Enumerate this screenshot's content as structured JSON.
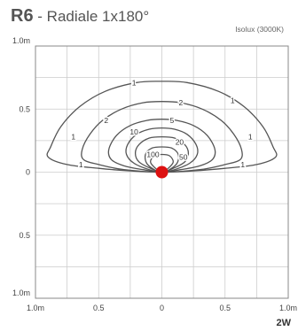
{
  "header": {
    "model": "R6",
    "title": " - Radiale 1x180°",
    "note": "Isolux (3000K)"
  },
  "footer": {
    "power": "2W"
  },
  "colors": {
    "grid": "#cccccc",
    "frame": "#888888",
    "contour": "#555555",
    "source": "#dd1111",
    "text": "#555555"
  },
  "chart_data": {
    "type": "contour",
    "x_tick_labels": [
      "1.0m",
      "0.5",
      "0",
      "0.5",
      "1.0m"
    ],
    "y_tick_labels": [
      "1.0m",
      "0.5",
      "0",
      "0.5",
      "1.0m"
    ],
    "x_ticks": [
      -1.0,
      -0.5,
      0,
      0.5,
      1.0
    ],
    "y_ticks": [
      1.0,
      0.5,
      0,
      -0.5,
      -1.0
    ],
    "xlim": [
      -1.0,
      1.0
    ],
    "ylim": [
      -1.0,
      1.0
    ],
    "grid_step": 0.25,
    "grid": true,
    "source": {
      "x": 0,
      "y": 0
    },
    "contours": [
      {
        "level": "1",
        "points": [
          [
            0.0,
            0.72
          ],
          [
            0.2,
            0.71
          ],
          [
            0.45,
            0.64
          ],
          [
            0.65,
            0.52
          ],
          [
            0.8,
            0.36
          ],
          [
            0.88,
            0.2
          ],
          [
            0.9,
            0.12
          ],
          [
            0.75,
            0.06
          ],
          [
            0.5,
            0.03
          ],
          [
            0.25,
            0.01
          ],
          [
            0.0,
            0.0
          ],
          [
            -0.25,
            0.01
          ],
          [
            -0.5,
            0.03
          ],
          [
            -0.75,
            0.06
          ],
          [
            -0.9,
            0.12
          ],
          [
            -0.88,
            0.2
          ],
          [
            -0.8,
            0.36
          ],
          [
            -0.65,
            0.52
          ],
          [
            -0.45,
            0.64
          ],
          [
            -0.2,
            0.71
          ]
        ],
        "label_at": [
          [
            -0.22,
            0.71
          ],
          [
            0.56,
            0.57
          ],
          [
            -0.7,
            0.28
          ],
          [
            0.7,
            0.28
          ],
          [
            -0.64,
            0.06
          ],
          [
            0.64,
            0.06
          ]
        ]
      },
      {
        "level": "2",
        "points": [
          [
            0.0,
            0.56
          ],
          [
            0.15,
            0.55
          ],
          [
            0.32,
            0.5
          ],
          [
            0.47,
            0.41
          ],
          [
            0.57,
            0.3
          ],
          [
            0.63,
            0.18
          ],
          [
            0.62,
            0.1
          ],
          [
            0.5,
            0.06
          ],
          [
            0.3,
            0.02
          ],
          [
            0.0,
            0.0
          ],
          [
            -0.3,
            0.02
          ],
          [
            -0.5,
            0.06
          ],
          [
            -0.62,
            0.1
          ],
          [
            -0.63,
            0.18
          ],
          [
            -0.57,
            0.3
          ],
          [
            -0.47,
            0.41
          ],
          [
            -0.32,
            0.5
          ],
          [
            -0.15,
            0.55
          ]
        ],
        "label_at": [
          [
            0.15,
            0.55
          ],
          [
            -0.44,
            0.41
          ]
        ]
      },
      {
        "level": "5",
        "points": [
          [
            0.0,
            0.42
          ],
          [
            0.12,
            0.41
          ],
          [
            0.25,
            0.37
          ],
          [
            0.36,
            0.29
          ],
          [
            0.42,
            0.18
          ],
          [
            0.4,
            0.1
          ],
          [
            0.3,
            0.05
          ],
          [
            0.15,
            0.02
          ],
          [
            0.0,
            0.0
          ],
          [
            -0.15,
            0.02
          ],
          [
            -0.3,
            0.05
          ],
          [
            -0.4,
            0.1
          ],
          [
            -0.42,
            0.18
          ],
          [
            -0.36,
            0.29
          ],
          [
            -0.25,
            0.37
          ],
          [
            -0.12,
            0.41
          ]
        ],
        "label_at": [
          [
            0.08,
            0.41
          ]
        ]
      },
      {
        "level": "10",
        "points": [
          [
            0.0,
            0.35
          ],
          [
            0.1,
            0.34
          ],
          [
            0.2,
            0.3
          ],
          [
            0.27,
            0.22
          ],
          [
            0.28,
            0.14
          ],
          [
            0.22,
            0.07
          ],
          [
            0.1,
            0.02
          ],
          [
            0.0,
            0.0
          ],
          [
            -0.1,
            0.02
          ],
          [
            -0.22,
            0.07
          ],
          [
            -0.28,
            0.14
          ],
          [
            -0.27,
            0.22
          ],
          [
            -0.2,
            0.3
          ],
          [
            -0.1,
            0.34
          ]
        ],
        "label_at": [
          [
            -0.22,
            0.32
          ]
        ]
      },
      {
        "level": "20",
        "points": [
          [
            0.0,
            0.28
          ],
          [
            0.1,
            0.27
          ],
          [
            0.18,
            0.22
          ],
          [
            0.21,
            0.15
          ],
          [
            0.18,
            0.08
          ],
          [
            0.09,
            0.03
          ],
          [
            0.0,
            0.0
          ],
          [
            -0.09,
            0.03
          ],
          [
            -0.18,
            0.08
          ],
          [
            -0.21,
            0.15
          ],
          [
            -0.18,
            0.22
          ],
          [
            -0.1,
            0.27
          ]
        ],
        "label_at": [
          [
            0.14,
            0.24
          ]
        ]
      },
      {
        "level": "50",
        "points": [
          [
            0.0,
            0.2
          ],
          [
            0.08,
            0.19
          ],
          [
            0.13,
            0.14
          ],
          [
            0.12,
            0.07
          ],
          [
            0.06,
            0.02
          ],
          [
            0.0,
            0.0
          ],
          [
            -0.06,
            0.02
          ],
          [
            -0.12,
            0.07
          ],
          [
            -0.13,
            0.14
          ],
          [
            -0.08,
            0.19
          ]
        ],
        "label_at": [
          [
            0.17,
            0.12
          ]
        ]
      },
      {
        "level": "100",
        "points": [
          [
            0.0,
            0.14
          ],
          [
            0.06,
            0.13
          ],
          [
            0.09,
            0.08
          ],
          [
            0.05,
            0.03
          ],
          [
            0.0,
            0.0
          ],
          [
            -0.05,
            0.03
          ],
          [
            -0.09,
            0.08
          ],
          [
            -0.06,
            0.13
          ]
        ],
        "label_at": [
          [
            -0.07,
            0.14
          ]
        ]
      }
    ]
  }
}
